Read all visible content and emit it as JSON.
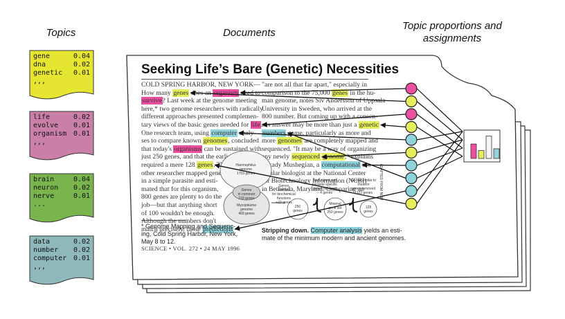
{
  "headings": {
    "topics": "Topics",
    "documents": "Documents",
    "proportions_line1": "Topic proportions and",
    "proportions_line2": "assignments"
  },
  "topics": [
    {
      "color": "#e6e632",
      "words": [
        {
          "w": "gene",
          "p": "0.04"
        },
        {
          "w": "dna",
          "p": "0.02"
        },
        {
          "w": "genetic",
          "p": "0.01"
        }
      ],
      "more": ",,,"
    },
    {
      "color": "#c97fa8",
      "words": [
        {
          "w": "life",
          "p": "0.02"
        },
        {
          "w": "evolve",
          "p": "0.01"
        },
        {
          "w": "organism",
          "p": "0.01"
        }
      ],
      "more": ",,,"
    },
    {
      "color": "#79b54c",
      "words": [
        {
          "w": "brain",
          "p": "0.04"
        },
        {
          "w": "neuron",
          "p": "0.02"
        },
        {
          "w": "nerve",
          "p": "0.01"
        }
      ],
      "more": "..."
    },
    {
      "color": "#8fb8bc",
      "words": [
        {
          "w": "data",
          "p": "0.02"
        },
        {
          "w": "number",
          "p": "0.02"
        },
        {
          "w": "computer",
          "p": "0.01"
        }
      ],
      "more": ",,,"
    }
  ],
  "highlight_colors": {
    "pink": "#ec4fa0",
    "yellow": "#e6ee5a",
    "blue": "#8fd3dd"
  },
  "article": {
    "title": "Seeking Life’s Bare (Genetic) Necessities",
    "left_column": [
      [
        {
          "t": "COLD SPRING HARBOR, NEW YORK—"
        }
      ],
      [
        {
          "t": "How many "
        },
        {
          "t": "genes",
          "h": "yellow"
        },
        {
          "t": " does an "
        },
        {
          "t": "organism",
          "h": "pink"
        },
        {
          "t": " need to"
        }
      ],
      [
        {
          "t": "survive",
          "h": "pink"
        },
        {
          "t": "? Last week at the genome meeting"
        }
      ],
      [
        {
          "t": "here,* two genome researchers with radically"
        }
      ],
      [
        {
          "t": "different approaches presented complemen-"
        }
      ],
      [
        {
          "t": "tary views of the basic genes needed for "
        },
        {
          "t": "life",
          "h": "pink"
        },
        {
          "t": "."
        }
      ],
      [
        {
          "t": "One research team, using "
        },
        {
          "t": "computer",
          "h": "blue"
        },
        {
          "t": " analy-"
        }
      ],
      [
        {
          "t": "ses to compare known "
        },
        {
          "t": "genomes",
          "h": "yellow"
        },
        {
          "t": ", concluded"
        }
      ],
      [
        {
          "t": "that today's "
        },
        {
          "t": "organisms",
          "h": "pink"
        },
        {
          "t": " can be sustained with"
        }
      ],
      [
        {
          "t": "just 250 genes, and that the earliest life forms"
        }
      ],
      [
        {
          "t": "required a mere 128 "
        },
        {
          "t": "genes",
          "h": "yellow"
        },
        {
          "t": ". The"
        }
      ],
      [
        {
          "t": "other researcher mapped genes"
        }
      ],
      [
        {
          "t": "in a simple parasite and esti-"
        }
      ],
      [
        {
          "t": "mated that for this organism,"
        }
      ],
      [
        {
          "t": "800 genes are plenty to do the"
        }
      ],
      [
        {
          "t": "job—but that anything short"
        }
      ],
      [
        {
          "t": "of 100 wouldn't be enough."
        }
      ],
      [
        {
          "t": "   Although the numbers don't"
        }
      ],
      [
        {
          "t": "match precisely, those "
        },
        {
          "t": "predictions",
          "h": "blue"
        }
      ]
    ],
    "right_column": [
      [
        {
          "t": "\"are not all that far apart,\" especially in"
        }
      ],
      [
        {
          "t": "comparison to the 75,000 "
        },
        {
          "t": "genes",
          "h": "yellow"
        },
        {
          "t": " in the hu-"
        }
      ],
      [
        {
          "t": "man genome, notes Siv Andersson of Uppsala"
        }
      ],
      [
        {
          "t": "University in Sweden, who arrived at the"
        }
      ],
      [
        {
          "t": "800 number. But coming up with a consen-"
        }
      ],
      [
        {
          "t": "sus answer may be more than just a "
        },
        {
          "t": "genetic",
          "h": "yellow"
        }
      ],
      [
        {
          "t": "numbers",
          "h": "blue"
        },
        {
          "t": " game, particularly as more and"
        }
      ],
      [
        {
          "t": "more "
        },
        {
          "t": "genomes",
          "h": "yellow"
        },
        {
          "t": " are completely mapped and"
        }
      ],
      [
        {
          "t": "sequenced. \"It may be a way of organizing"
        }
      ],
      [
        {
          "t": "any newly "
        },
        {
          "t": "sequenced",
          "h": "yellow"
        },
        {
          "t": " "
        },
        {
          "t": "genome",
          "h": "yellow"
        },
        {
          "t": ",\" explains"
        }
      ],
      [
        {
          "t": "   Arcady Mushegian, a "
        },
        {
          "t": "computational",
          "h": "blue"
        },
        {
          "t": " mo-"
        }
      ],
      [
        {
          "t": "lecular biologist at the National Center"
        }
      ],
      [
        {
          "t": "for Biotechnology Information (NCBI)"
        }
      ],
      [
        {
          "t": "in Bethesda, Maryland. Comparing an"
        }
      ]
    ],
    "footnote": [
      "* Genome Mapping and Sequenc-",
      "ing, Cold Spring Harbor, New York,",
      "May 8 to 12."
    ],
    "footer": "SCIENCE • VOL. 272 • 24 MAY 1996",
    "caption_bold": "Stripping down.",
    "caption_highlight": "Computer analysis",
    "caption_rest": " yields an esti-",
    "caption_line2": "mate of the minimum modern and ancient genomes.",
    "figure_labels": {
      "haemophilus": [
        "Haemophilus",
        "genome",
        "1703 genes"
      ],
      "common": [
        "Genes",
        "in common",
        "233 genes"
      ],
      "mycoplasma": [
        "Mycoplasma",
        "genome",
        "469 genes"
      ],
      "needed": [
        "Genes",
        "needed",
        "for biochemical",
        "functions",
        "+22 genes"
      ],
      "redundant": [
        "Redundant and",
        "parasite-specific",
        "genes removed",
        "– 4 genes"
      ],
      "g250": [
        "250",
        "genes"
      ],
      "minimal": [
        "Minimal",
        "gene set",
        "250 genes"
      ],
      "ancient": [
        "Genes similar to",
        "modern",
        "genes removed",
        "–122 genes"
      ],
      "g128": [
        "128",
        "genes"
      ],
      "credit": "ADAPTED FROM NCBI"
    }
  },
  "proportions_chart": {
    "type": "bar",
    "values": [
      0.55,
      0.3,
      0.85,
      0.37
    ],
    "colors": [
      "#ec4fa0",
      "#e6ee5a",
      "#f5f5f5",
      "#8fd3dd"
    ]
  },
  "assignment_circles": [
    "#ec4fa0",
    "#e6ee5a",
    "#ec4fa0",
    "#e6ee5a",
    "#8fd3dd",
    "#e6ee5a",
    "#8fd3dd",
    "#8fd3dd",
    "#8fd3dd",
    "#e6ee5a"
  ]
}
